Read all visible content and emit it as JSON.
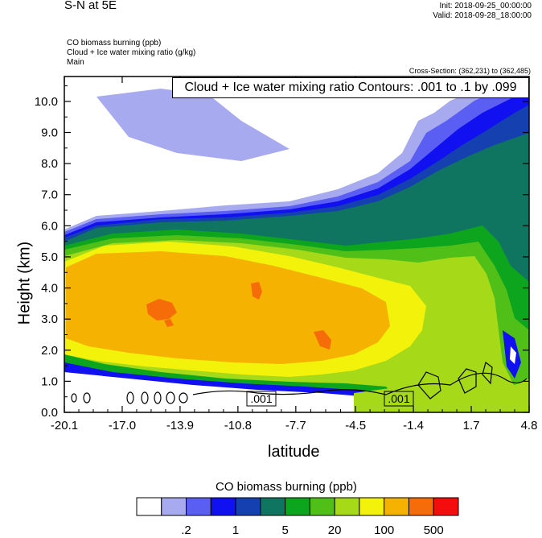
{
  "header": {
    "title": "S-N at 5E",
    "init": "Init: 2018-09-25_00:00:00",
    "valid": "Valid: 2018-09-28_18:00:00",
    "var1": "CO biomass burning   (ppb)",
    "var2": "Cloud + Ice water mixing ratio   (g/kg)",
    "var3": "Main",
    "cross_section": "Cross-Section: (362,231) to (362,485)",
    "contour_box": "Cloud + Ice water mixing ratio Contours: .001 to .1 by .099"
  },
  "chart_data": {
    "type": "heatmap",
    "xlabel": "latitude",
    "ylabel": "Height (km)",
    "x_ticks": [
      "-20.1",
      "-17.0",
      "-13.9",
      "-10.8",
      "-7.7",
      "-4.5",
      "-1.4",
      "1.7",
      "4.8"
    ],
    "y_ticks": [
      "0.0",
      "1.0",
      "2.0",
      "3.0",
      "4.0",
      "5.0",
      "6.0",
      "7.0",
      "8.0",
      "9.0",
      "10.0"
    ],
    "xlim": [
      -20.1,
      4.8
    ],
    "ylim": [
      0,
      10.8
    ],
    "colorbar": {
      "title": "CO biomass burning  (ppb)",
      "colors": [
        "#ffffff",
        "#a8aaf0",
        "#5a5ef2",
        "#1010f0",
        "#1540b0",
        "#107560",
        "#0ea51e",
        "#50c018",
        "#a6d918",
        "#f2f20a",
        "#f5b200",
        "#f56c08",
        "#f50c0c"
      ],
      "labels": [
        ".2",
        "1",
        "5",
        "20",
        "100",
        "500"
      ]
    },
    "contour_labels": [
      ".001",
      ".001"
    ]
  }
}
